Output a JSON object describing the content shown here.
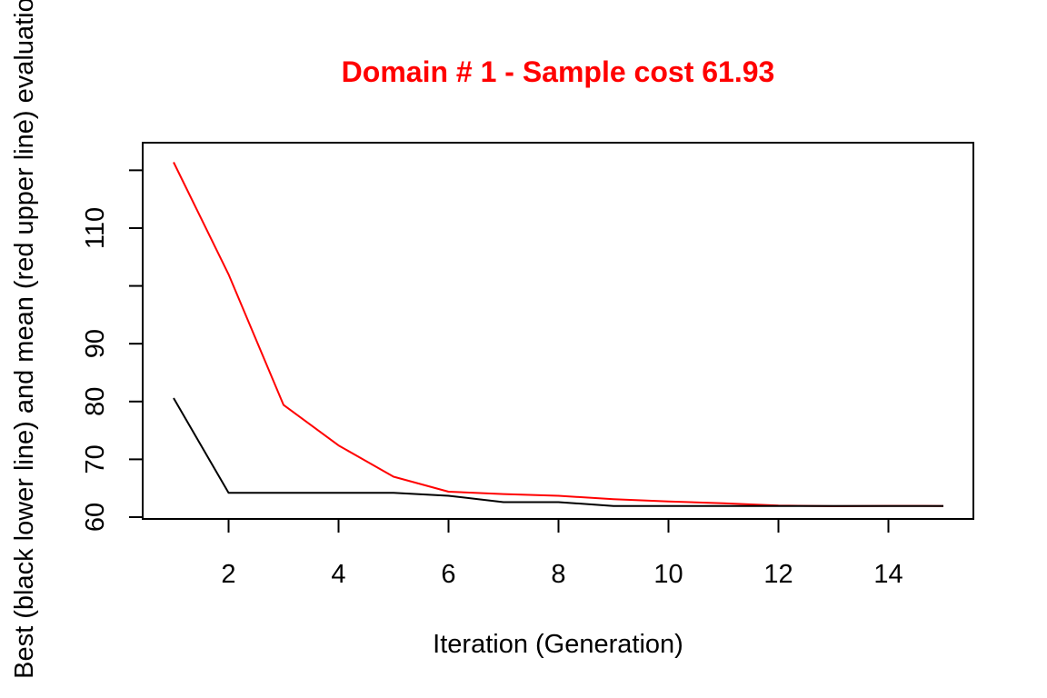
{
  "chart_data": {
    "type": "line",
    "title": "Domain # 1  - Sample cost 61.93",
    "xlabel": "Iteration (Generation)",
    "ylabel": "Best (black lower line) and mean (red upper line) evaluation",
    "x": [
      1,
      2,
      3,
      4,
      5,
      6,
      7,
      8,
      9,
      10,
      11,
      12,
      13,
      14,
      15
    ],
    "xlim": [
      1,
      15
    ],
    "ylim": [
      60,
      121
    ],
    "x_ticks": [
      "2",
      "4",
      "6",
      "8",
      "10",
      "12",
      "14"
    ],
    "y_ticks": [
      "60",
      "70",
      "80",
      "90",
      "110"
    ],
    "grid": false,
    "series": [
      {
        "color": "#ff0000",
        "values": [
          121.4,
          102.0,
          79.4,
          72.4,
          67.0,
          64.4,
          64.0,
          63.7,
          63.1,
          62.7,
          62.4,
          62.0,
          61.9,
          61.95,
          61.93
        ]
      },
      {
        "color": "#000000",
        "values": [
          80.6,
          64.2,
          64.2,
          64.2,
          64.2,
          63.7,
          62.6,
          62.6,
          61.93,
          61.93,
          61.93,
          61.93,
          61.93,
          61.93,
          61.93
        ]
      }
    ],
    "title_color": "#ff0000"
  }
}
